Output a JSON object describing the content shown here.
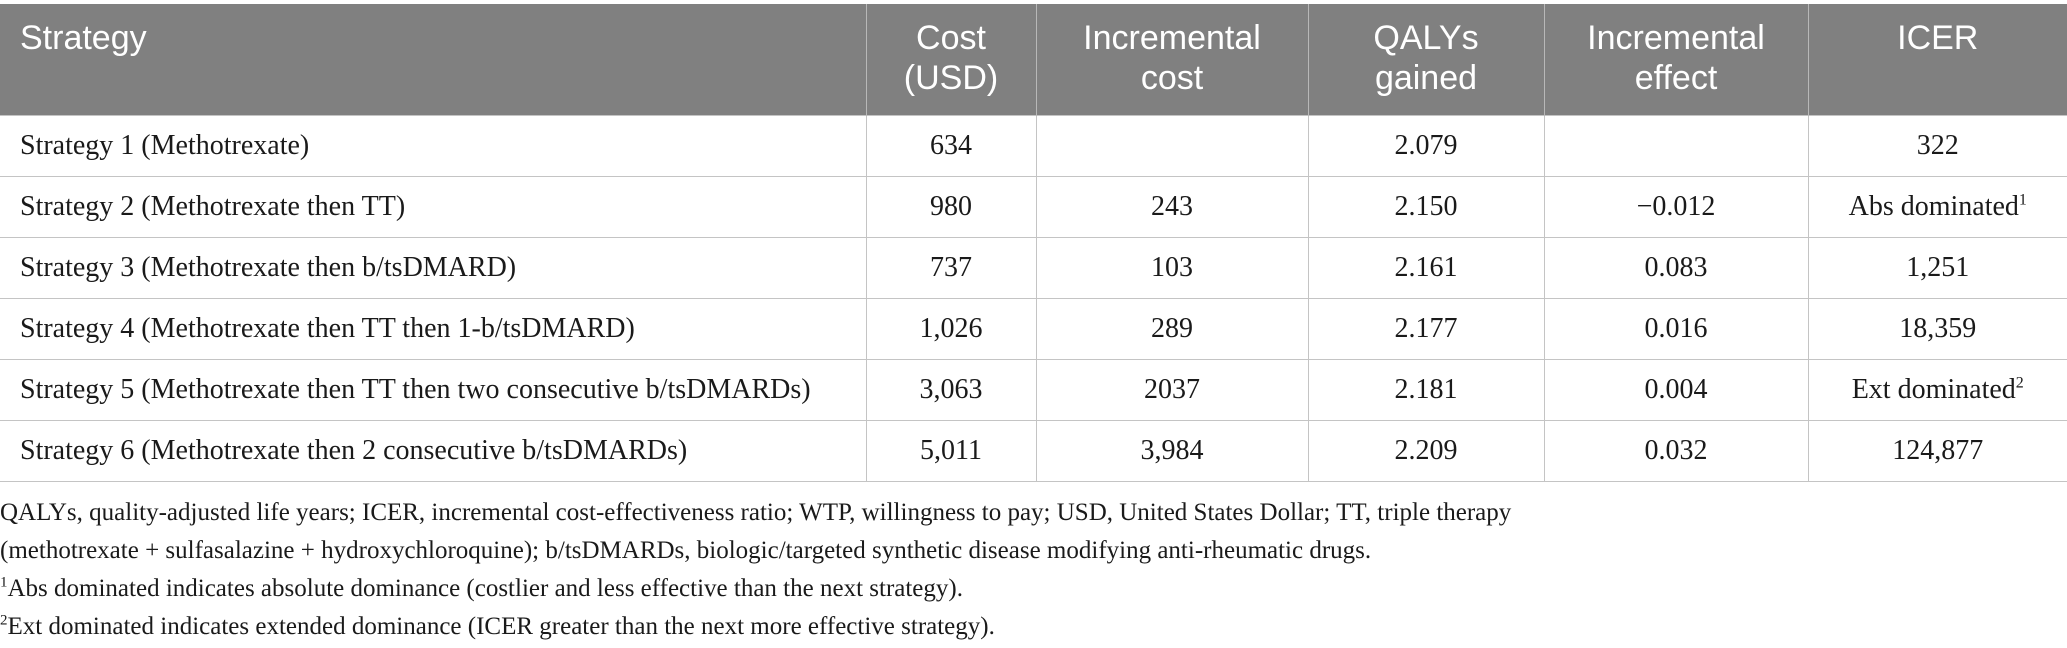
{
  "table": {
    "headers": [
      {
        "line1": "Strategy",
        "line2": ""
      },
      {
        "line1": "Cost",
        "line2": "(USD)"
      },
      {
        "line1": "Incremental",
        "line2": "cost"
      },
      {
        "line1": "QALYs",
        "line2": "gained"
      },
      {
        "line1": "Incremental",
        "line2": "effect"
      },
      {
        "line1": "ICER",
        "line2": ""
      }
    ],
    "rows": [
      {
        "strategy": "Strategy 1 (Methotrexate)",
        "cost": "634",
        "incremental_cost": "",
        "qalys": "2.079",
        "incremental_effect": "",
        "icer": "322",
        "icer_sup": ""
      },
      {
        "strategy": "Strategy 2 (Methotrexate then TT)",
        "cost": "980",
        "incremental_cost": "243",
        "qalys": "2.150",
        "incremental_effect": "−0.012",
        "icer": "Abs dominated",
        "icer_sup": "1"
      },
      {
        "strategy": "Strategy 3 (Methotrexate then b/tsDMARD)",
        "cost": "737",
        "incremental_cost": "103",
        "qalys": "2.161",
        "incremental_effect": "0.083",
        "icer": "1,251",
        "icer_sup": ""
      },
      {
        "strategy": "Strategy 4 (Methotrexate then TT then 1-b/tsDMARD)",
        "cost": "1,026",
        "incremental_cost": "289",
        "qalys": "2.177",
        "incremental_effect": "0.016",
        "icer": "18,359",
        "icer_sup": ""
      },
      {
        "strategy": "Strategy 5 (Methotrexate then TT then two consecutive b/tsDMARDs)",
        "cost": "3,063",
        "incremental_cost": "2037",
        "qalys": "2.181",
        "incremental_effect": "0.004",
        "icer": "Ext dominated",
        "icer_sup": "2"
      },
      {
        "strategy": "Strategy 6 (Methotrexate then 2 consecutive b/tsDMARDs)",
        "cost": "5,011",
        "incremental_cost": "3,984",
        "qalys": "2.209",
        "incremental_effect": "0.032",
        "icer": "124,877",
        "icer_sup": ""
      }
    ]
  },
  "footnotes": {
    "abbrev_line1": "QALYs, quality-adjusted life years; ICER, incremental cost-effectiveness ratio; WTP, willingness to pay; USD, United States Dollar; TT, triple therapy",
    "abbrev_line2": "(methotrexate + sulfasalazine + hydroxychloroquine); b/tsDMARDs, biologic/targeted synthetic disease modifying anti-rheumatic drugs.",
    "note1_mark": "1",
    "note1_text": "Abs dominated indicates absolute dominance (costlier and less effective than the next strategy).",
    "note2_mark": "2",
    "note2_text": "Ext dominated indicates extended dominance (ICER greater than the next more effective strategy)."
  }
}
